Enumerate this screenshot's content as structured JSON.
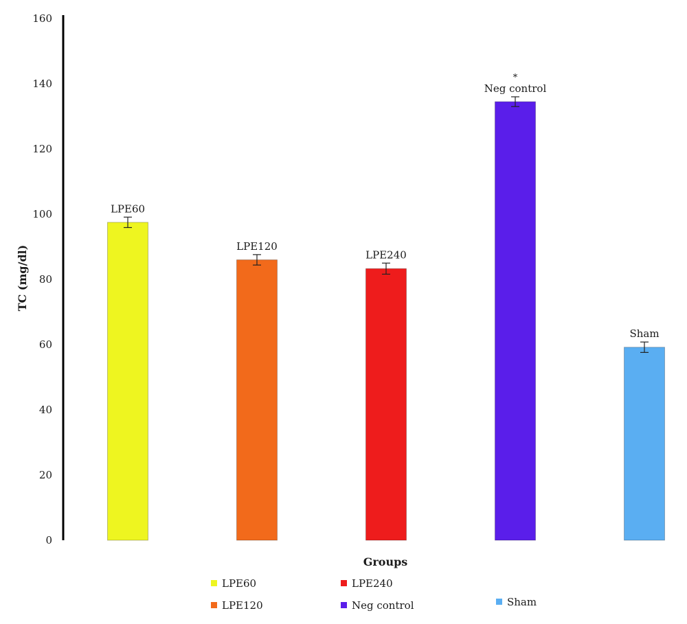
{
  "chart_data": {
    "type": "bar",
    "title": "",
    "xlabel": "Groups",
    "ylabel": "TC (mg/dl)",
    "ylim": [
      0,
      160
    ],
    "yticks": [
      "0",
      "20",
      "40",
      "60",
      "80",
      "100",
      "120",
      "140",
      "160"
    ],
    "grid": false,
    "legend_position": "bottom",
    "categories": [
      "LPE60",
      "LPE120",
      "LPE240",
      "Neg control",
      "Sham"
    ],
    "values": [
      97.5,
      86,
      83.3,
      134.5,
      59.2
    ],
    "errors": [
      1.6,
      1.6,
      1.7,
      1.5,
      1.6
    ],
    "colors": [
      "#eef520",
      "#f26a1b",
      "#ee1c1c",
      "#5a1eea",
      "#5aaef2"
    ],
    "annotations": [
      {
        "category": "Neg control",
        "text": "*"
      }
    ],
    "legend": [
      {
        "label": "LPE60",
        "color": "#eef520"
      },
      {
        "label": "LPE240",
        "color": "#ee1c1c"
      },
      {
        "label": "LPE120",
        "color": "#f26a1b"
      },
      {
        "label": "Neg control",
        "color": "#5a1eea"
      },
      {
        "label": "Sham",
        "color": "#5aaef2"
      }
    ]
  }
}
